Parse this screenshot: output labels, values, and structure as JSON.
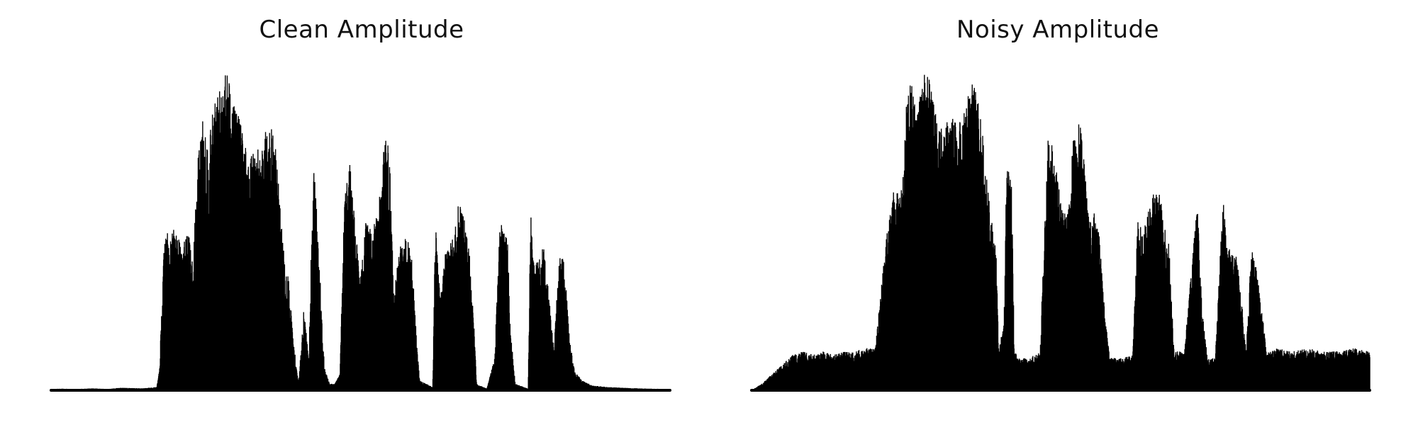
{
  "chart_data": [
    {
      "type": "line",
      "title": "Clean Amplitude",
      "axes": "off",
      "grid": false,
      "color": "#000000",
      "samples": 200,
      "envelope": [
        [
          0.0,
          0.004
        ],
        [
          0.02,
          0.005
        ],
        [
          0.05,
          0.004
        ],
        [
          0.08,
          0.006
        ],
        [
          0.11,
          0.004
        ],
        [
          0.135,
          0.008
        ],
        [
          0.175,
          0.006
        ],
        [
          0.205,
          0.01
        ],
        [
          0.21,
          0.06
        ],
        [
          0.22,
          0.48
        ],
        [
          0.24,
          0.5
        ],
        [
          0.255,
          0.44
        ],
        [
          0.265,
          0.5
        ],
        [
          0.275,
          0.4
        ],
        [
          0.285,
          0.72
        ],
        [
          0.295,
          0.85
        ],
        [
          0.305,
          0.75
        ],
        [
          0.315,
          0.88
        ],
        [
          0.33,
          0.94
        ],
        [
          0.34,
          1.0
        ],
        [
          0.355,
          0.9
        ],
        [
          0.37,
          0.82
        ],
        [
          0.38,
          0.72
        ],
        [
          0.395,
          0.74
        ],
        [
          0.41,
          0.75
        ],
        [
          0.42,
          0.88
        ],
        [
          0.435,
          0.75
        ],
        [
          0.445,
          0.56
        ],
        [
          0.455,
          0.35
        ],
        [
          0.46,
          0.36
        ],
        [
          0.47,
          0.15
        ],
        [
          0.48,
          0.02
        ],
        [
          0.49,
          0.25
        ],
        [
          0.5,
          0.1
        ],
        [
          0.505,
          0.51
        ],
        [
          0.51,
          0.7
        ],
        [
          0.52,
          0.4
        ],
        [
          0.53,
          0.07
        ],
        [
          0.54,
          0.02
        ],
        [
          0.55,
          0.02
        ],
        [
          0.56,
          0.05
        ],
        [
          0.57,
          0.68
        ],
        [
          0.58,
          0.7
        ],
        [
          0.59,
          0.5
        ],
        [
          0.6,
          0.35
        ],
        [
          0.61,
          0.52
        ],
        [
          0.62,
          0.5
        ],
        [
          0.635,
          0.56
        ],
        [
          0.645,
          0.78
        ],
        [
          0.655,
          0.78
        ],
        [
          0.665,
          0.3
        ],
        [
          0.675,
          0.45
        ],
        [
          0.69,
          0.48
        ],
        [
          0.7,
          0.42
        ],
        [
          0.71,
          0.12
        ],
        [
          0.715,
          0.03
        ],
        [
          0.74,
          0.01
        ],
        [
          0.745,
          0.52
        ],
        [
          0.755,
          0.28
        ],
        [
          0.765,
          0.44
        ],
        [
          0.78,
          0.47
        ],
        [
          0.79,
          0.58
        ],
        [
          0.8,
          0.54
        ],
        [
          0.81,
          0.46
        ],
        [
          0.82,
          0.2
        ],
        [
          0.825,
          0.02
        ],
        [
          0.845,
          0.005
        ],
        [
          0.86,
          0.1
        ],
        [
          0.87,
          0.52
        ],
        [
          0.885,
          0.48
        ],
        [
          0.89,
          0.2
        ],
        [
          0.9,
          0.02
        ],
        [
          0.925,
          0.005
        ],
        [
          0.93,
          0.58
        ],
        [
          0.935,
          0.4
        ],
        [
          0.945,
          0.4
        ],
        [
          0.955,
          0.46
        ],
        [
          0.965,
          0.3
        ],
        [
          0.975,
          0.12
        ],
        [
          0.985,
          0.42
        ],
        [
          0.995,
          0.4
        ],
        [
          1.005,
          0.16
        ],
        [
          1.015,
          0.06
        ],
        [
          1.03,
          0.03
        ],
        [
          1.05,
          0.015
        ],
        [
          1.08,
          0.01
        ],
        [
          1.12,
          0.007
        ],
        [
          1.16,
          0.005
        ],
        [
          1.2,
          0.004
        ]
      ]
    },
    {
      "type": "line",
      "title": "Noisy Amplitude",
      "axes": "off",
      "grid": false,
      "color": "#000000",
      "samples": 200,
      "envelope": [
        [
          0.0,
          0.0
        ],
        [
          0.02,
          0.02
        ],
        [
          0.04,
          0.05
        ],
        [
          0.06,
          0.08
        ],
        [
          0.08,
          0.11
        ],
        [
          0.1,
          0.12
        ],
        [
          0.12,
          0.11
        ],
        [
          0.14,
          0.12
        ],
        [
          0.16,
          0.11
        ],
        [
          0.18,
          0.12
        ],
        [
          0.2,
          0.12
        ],
        [
          0.22,
          0.13
        ],
        [
          0.24,
          0.13
        ],
        [
          0.26,
          0.45
        ],
        [
          0.275,
          0.65
        ],
        [
          0.29,
          0.6
        ],
        [
          0.3,
          0.88
        ],
        [
          0.31,
          0.96
        ],
        [
          0.32,
          0.85
        ],
        [
          0.33,
          0.95
        ],
        [
          0.34,
          1.0
        ],
        [
          0.355,
          0.88
        ],
        [
          0.37,
          0.8
        ],
        [
          0.385,
          0.85
        ],
        [
          0.4,
          0.82
        ],
        [
          0.415,
          0.88
        ],
        [
          0.43,
          0.96
        ],
        [
          0.445,
          0.85
        ],
        [
          0.46,
          0.6
        ],
        [
          0.475,
          0.42
        ],
        [
          0.48,
          0.12
        ],
        [
          0.49,
          0.22
        ],
        [
          0.495,
          0.7
        ],
        [
          0.505,
          0.64
        ],
        [
          0.51,
          0.12
        ],
        [
          0.52,
          0.1
        ],
        [
          0.54,
          0.1
        ],
        [
          0.56,
          0.12
        ],
        [
          0.575,
          0.78
        ],
        [
          0.585,
          0.78
        ],
        [
          0.6,
          0.58
        ],
        [
          0.615,
          0.56
        ],
        [
          0.625,
          0.8
        ],
        [
          0.64,
          0.84
        ],
        [
          0.655,
          0.52
        ],
        [
          0.665,
          0.55
        ],
        [
          0.675,
          0.48
        ],
        [
          0.685,
          0.25
        ],
        [
          0.695,
          0.1
        ],
        [
          0.72,
          0.1
        ],
        [
          0.74,
          0.11
        ],
        [
          0.75,
          0.54
        ],
        [
          0.76,
          0.48
        ],
        [
          0.775,
          0.6
        ],
        [
          0.79,
          0.64
        ],
        [
          0.8,
          0.52
        ],
        [
          0.81,
          0.46
        ],
        [
          0.82,
          0.12
        ],
        [
          0.84,
          0.12
        ],
        [
          0.865,
          0.58
        ],
        [
          0.875,
          0.24
        ],
        [
          0.885,
          0.1
        ],
        [
          0.9,
          0.1
        ],
        [
          0.915,
          0.59
        ],
        [
          0.925,
          0.44
        ],
        [
          0.94,
          0.43
        ],
        [
          0.95,
          0.3
        ],
        [
          0.96,
          0.12
        ],
        [
          0.97,
          0.44
        ],
        [
          0.98,
          0.38
        ],
        [
          0.99,
          0.25
        ],
        [
          1.0,
          0.12
        ],
        [
          1.02,
          0.13
        ],
        [
          1.05,
          0.12
        ],
        [
          1.08,
          0.13
        ],
        [
          1.11,
          0.12
        ],
        [
          1.14,
          0.12
        ],
        [
          1.17,
          0.13
        ],
        [
          1.2,
          0.12
        ]
      ]
    }
  ]
}
